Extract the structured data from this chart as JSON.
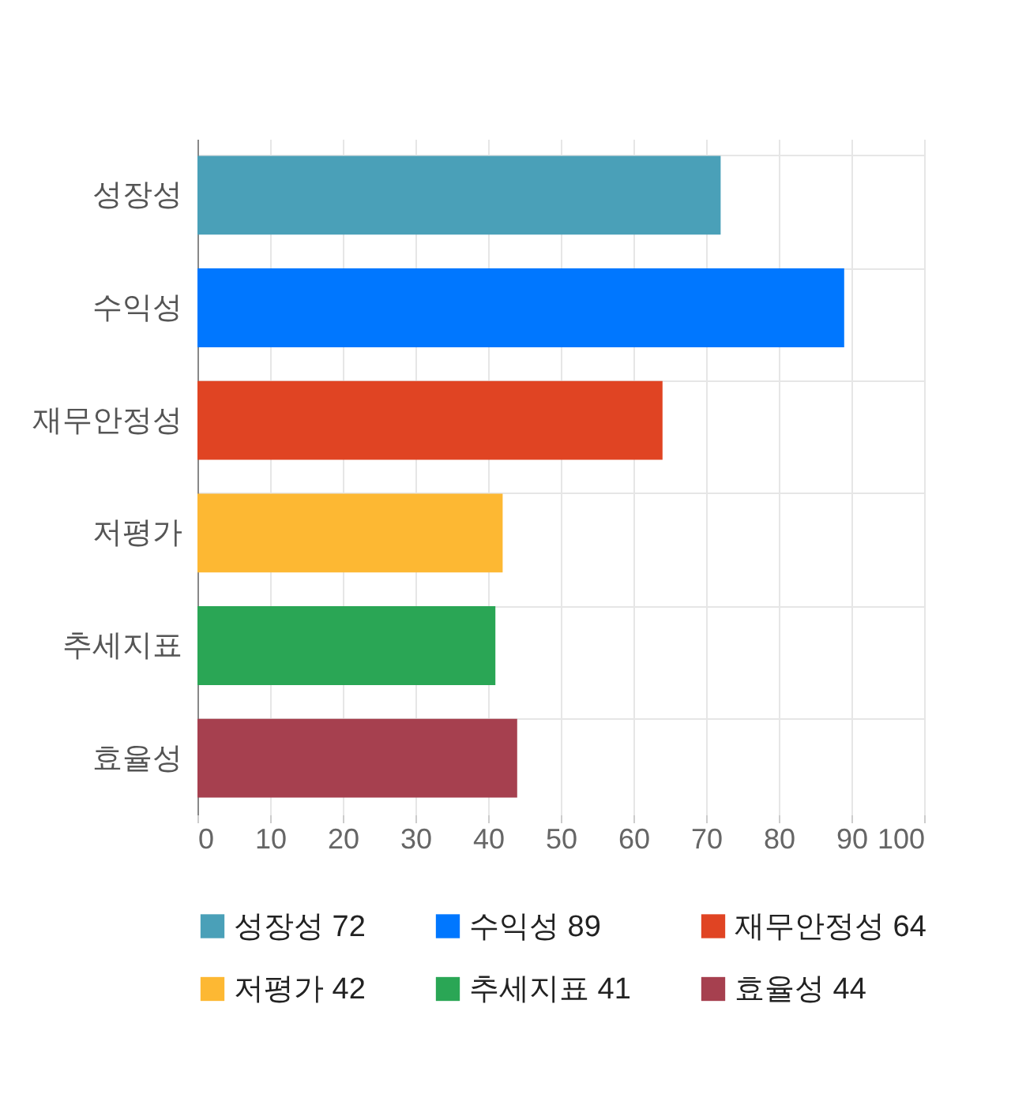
{
  "chart_data": {
    "type": "bar",
    "orientation": "horizontal",
    "categories": [
      "성장성",
      "수익성",
      "재무안정성",
      "저평가",
      "추세지표",
      "효율성"
    ],
    "series": [
      {
        "name": "성장성 72",
        "color": "#4aa0b8",
        "values": [
          72,
          null,
          null,
          null,
          null,
          null
        ]
      },
      {
        "name": "수익성 89",
        "color": "#0077ff",
        "values": [
          null,
          89,
          null,
          null,
          null,
          null
        ]
      },
      {
        "name": "재무안정성 64",
        "color": "#e04423",
        "values": [
          null,
          null,
          64,
          null,
          null,
          null
        ]
      },
      {
        "name": "저평가 42",
        "color": "#fdb833",
        "values": [
          null,
          null,
          null,
          42,
          null,
          null
        ]
      },
      {
        "name": "추세지표 41",
        "color": "#2aa655",
        "values": [
          null,
          null,
          null,
          null,
          41,
          null
        ]
      },
      {
        "name": "효율성 44",
        "color": "#a6404f",
        "values": [
          null,
          null,
          null,
          null,
          null,
          44
        ]
      }
    ],
    "xlim": [
      0,
      100
    ],
    "xticks": [
      0,
      10,
      20,
      30,
      40,
      50,
      60,
      70,
      80,
      90,
      100
    ],
    "grid": true,
    "legend": "bottom"
  }
}
